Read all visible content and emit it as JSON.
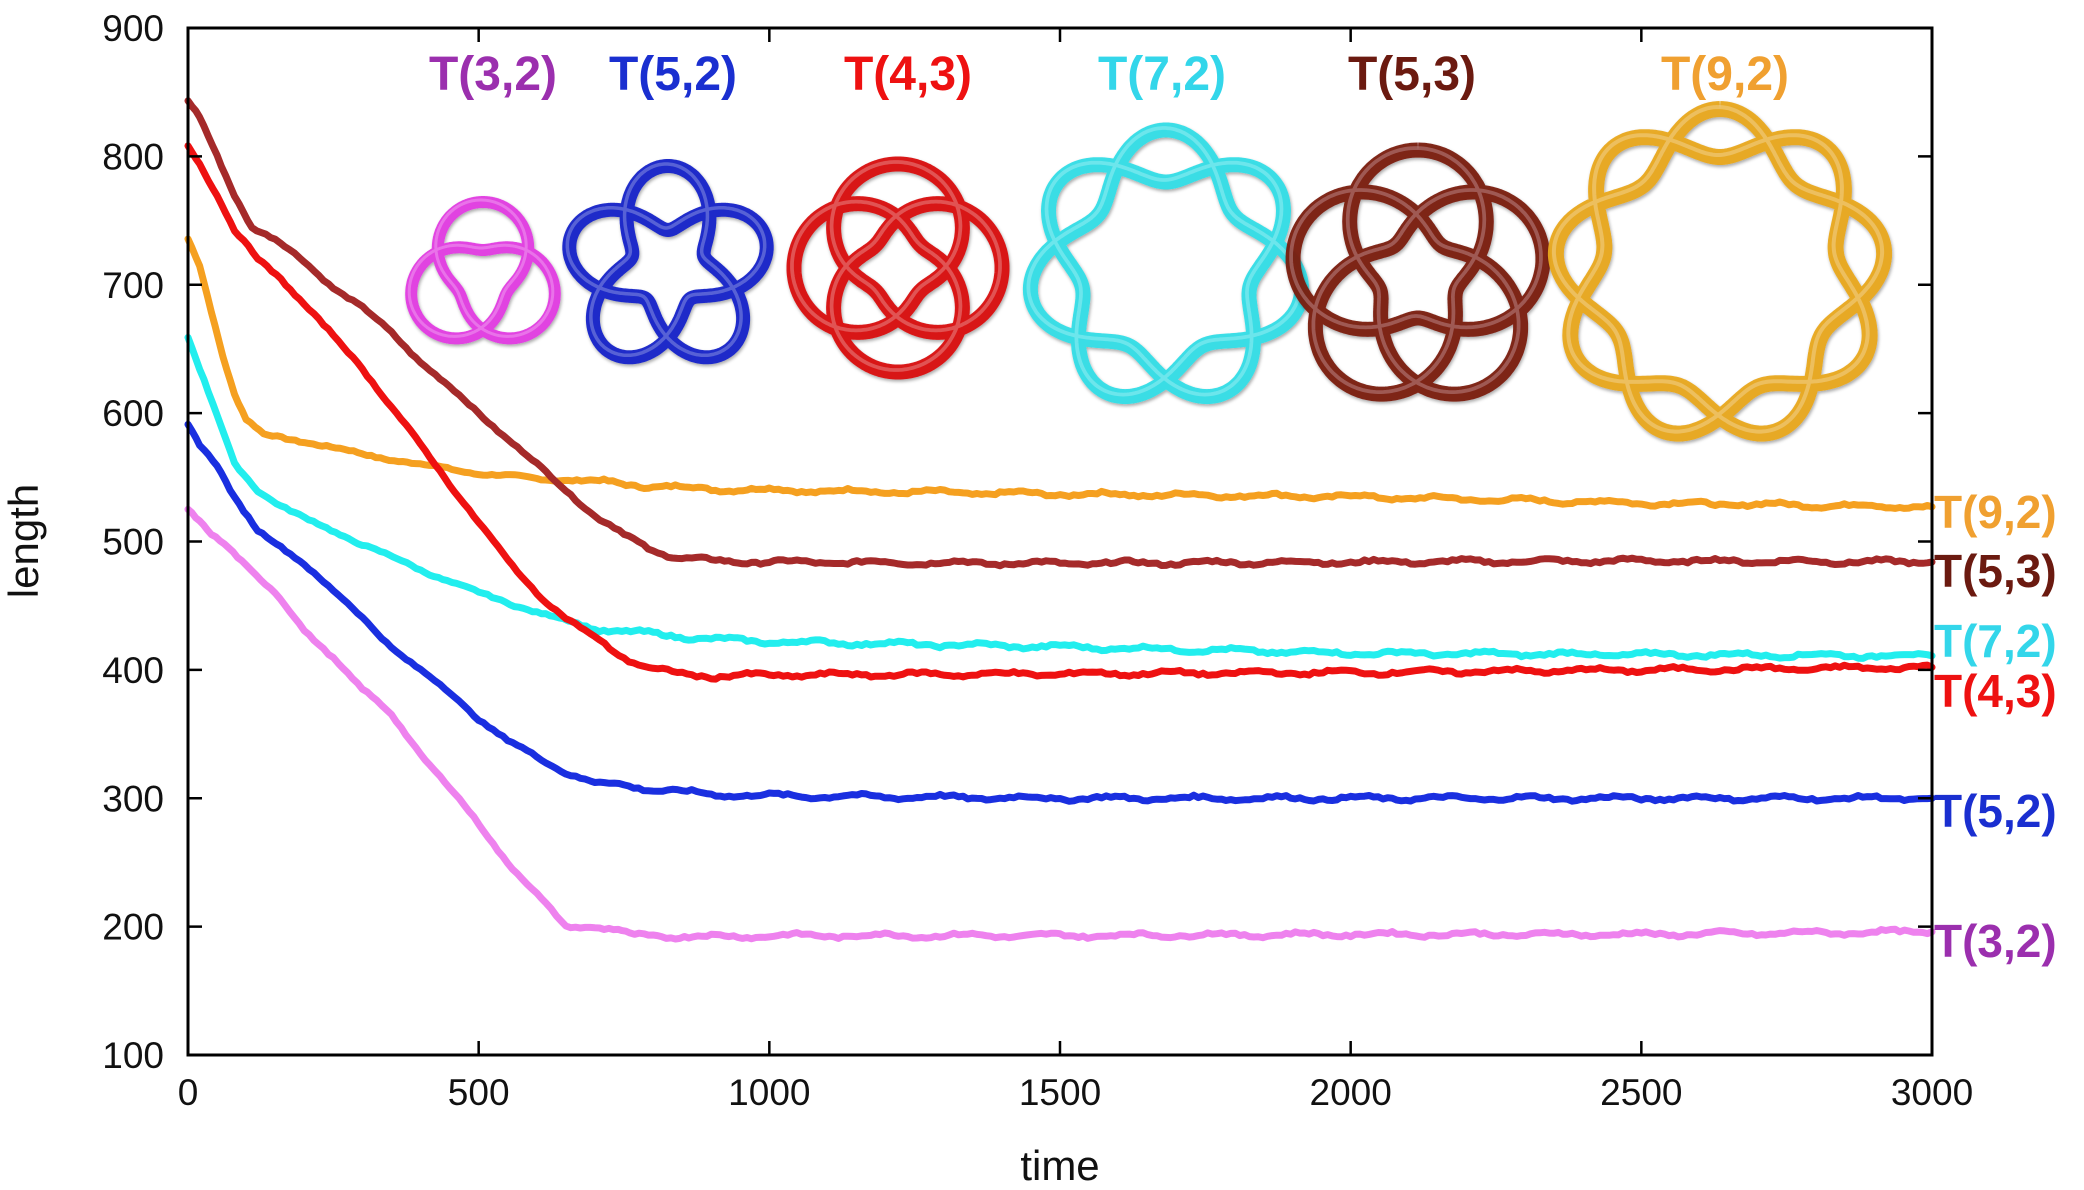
{
  "chart_data": {
    "type": "line",
    "title": "",
    "xlabel": "time",
    "ylabel": "length",
    "xlim": [
      0,
      3000
    ],
    "ylim": [
      100,
      900
    ],
    "xticks": [
      "0",
      "500",
      "1000",
      "1500",
      "2000",
      "2500",
      "3000"
    ],
    "yticks": [
      "100",
      "200",
      "300",
      "400",
      "500",
      "600",
      "700",
      "800",
      "900"
    ],
    "grid": false,
    "series": [
      {
        "name": "T(3,2)",
        "color": "#ee82ee",
        "label_color": "#9b2fae",
        "knot_color": "#e23de2",
        "points": [
          [
            0,
            525
          ],
          [
            20,
            515
          ],
          [
            40,
            505
          ],
          [
            70,
            495
          ],
          [
            100,
            482
          ],
          [
            150,
            460
          ],
          [
            200,
            430
          ],
          [
            250,
            410
          ],
          [
            300,
            385
          ],
          [
            350,
            365
          ],
          [
            400,
            335
          ],
          [
            450,
            308
          ],
          [
            500,
            280
          ],
          [
            550,
            250
          ],
          [
            600,
            225
          ],
          [
            650,
            200
          ],
          [
            700,
            200
          ],
          [
            740,
            197
          ],
          [
            760,
            193
          ],
          [
            800,
            193
          ],
          [
            900,
            192
          ],
          [
            1000,
            193
          ],
          [
            1500,
            193
          ],
          [
            2000,
            194
          ],
          [
            2500,
            194
          ],
          [
            3000,
            196
          ]
        ]
      },
      {
        "name": "T(5,2)",
        "color": "#1a2fe0",
        "label_color": "#1a2fd0",
        "knot_color": "#1525c8",
        "points": [
          [
            0,
            590
          ],
          [
            20,
            575
          ],
          [
            50,
            560
          ],
          [
            80,
            535
          ],
          [
            120,
            508
          ],
          [
            160,
            495
          ],
          [
            200,
            483
          ],
          [
            250,
            462
          ],
          [
            300,
            440
          ],
          [
            350,
            418
          ],
          [
            400,
            400
          ],
          [
            450,
            382
          ],
          [
            500,
            362
          ],
          [
            550,
            345
          ],
          [
            600,
            332
          ],
          [
            650,
            320
          ],
          [
            700,
            312
          ],
          [
            750,
            310
          ],
          [
            800,
            307
          ],
          [
            850,
            305
          ],
          [
            900,
            303
          ],
          [
            1000,
            302
          ],
          [
            1500,
            300
          ],
          [
            2000,
            300
          ],
          [
            2500,
            300
          ],
          [
            3000,
            300
          ]
        ]
      },
      {
        "name": "T(4,3)",
        "color": "#ee1111",
        "label_color": "#ee1111",
        "knot_color": "#d81010",
        "points": [
          [
            0,
            808
          ],
          [
            20,
            795
          ],
          [
            50,
            770
          ],
          [
            80,
            742
          ],
          [
            120,
            720
          ],
          [
            160,
            705
          ],
          [
            200,
            685
          ],
          [
            250,
            660
          ],
          [
            300,
            635
          ],
          [
            350,
            605
          ],
          [
            400,
            575
          ],
          [
            450,
            545
          ],
          [
            500,
            515
          ],
          [
            550,
            485
          ],
          [
            600,
            460
          ],
          [
            650,
            440
          ],
          [
            700,
            425
          ],
          [
            750,
            410
          ],
          [
            800,
            400
          ],
          [
            850,
            397
          ],
          [
            900,
            395
          ],
          [
            1000,
            396
          ],
          [
            1500,
            397
          ],
          [
            2000,
            398
          ],
          [
            2500,
            400
          ],
          [
            3000,
            402
          ]
        ]
      },
      {
        "name": "T(7,2)",
        "color": "#22eeee",
        "label_color": "#33d6ea",
        "knot_color": "#33dde6",
        "points": [
          [
            0,
            660
          ],
          [
            20,
            635
          ],
          [
            50,
            598
          ],
          [
            80,
            560
          ],
          [
            120,
            540
          ],
          [
            160,
            528
          ],
          [
            200,
            518
          ],
          [
            300,
            498
          ],
          [
            400,
            478
          ],
          [
            500,
            460
          ],
          [
            600,
            445
          ],
          [
            700,
            432
          ],
          [
            800,
            428
          ],
          [
            900,
            424
          ],
          [
            1000,
            422
          ],
          [
            1500,
            418
          ],
          [
            2000,
            413
          ],
          [
            2500,
            412
          ],
          [
            3000,
            411
          ]
        ]
      },
      {
        "name": "T(5,3)",
        "color": "#a52a2a",
        "label_color": "#6b1a10",
        "knot_color": "#7a1a10",
        "points": [
          [
            0,
            843
          ],
          [
            20,
            830
          ],
          [
            50,
            800
          ],
          [
            80,
            770
          ],
          [
            110,
            745
          ],
          [
            150,
            735
          ],
          [
            200,
            718
          ],
          [
            250,
            698
          ],
          [
            300,
            682
          ],
          [
            350,
            663
          ],
          [
            400,
            640
          ],
          [
            450,
            620
          ],
          [
            500,
            600
          ],
          [
            550,
            580
          ],
          [
            600,
            560
          ],
          [
            650,
            540
          ],
          [
            700,
            520
          ],
          [
            750,
            505
          ],
          [
            800,
            493
          ],
          [
            850,
            487
          ],
          [
            900,
            485
          ],
          [
            1000,
            484
          ],
          [
            1500,
            483
          ],
          [
            2000,
            484
          ],
          [
            2500,
            485
          ],
          [
            3000,
            484
          ]
        ]
      },
      {
        "name": "T(9,2)",
        "color": "#f5a020",
        "label_color": "#f0a030",
        "knot_color": "#e8a820",
        "points": [
          [
            0,
            735
          ],
          [
            20,
            715
          ],
          [
            40,
            680
          ],
          [
            60,
            645
          ],
          [
            80,
            615
          ],
          [
            100,
            595
          ],
          [
            130,
            583
          ],
          [
            200,
            578
          ],
          [
            300,
            568
          ],
          [
            400,
            560
          ],
          [
            500,
            553
          ],
          [
            600,
            549
          ],
          [
            700,
            547
          ],
          [
            800,
            543
          ],
          [
            900,
            541
          ],
          [
            1000,
            540
          ],
          [
            1500,
            537
          ],
          [
            2000,
            535
          ],
          [
            2500,
            530
          ],
          [
            3000,
            527
          ]
        ]
      }
    ]
  }
}
